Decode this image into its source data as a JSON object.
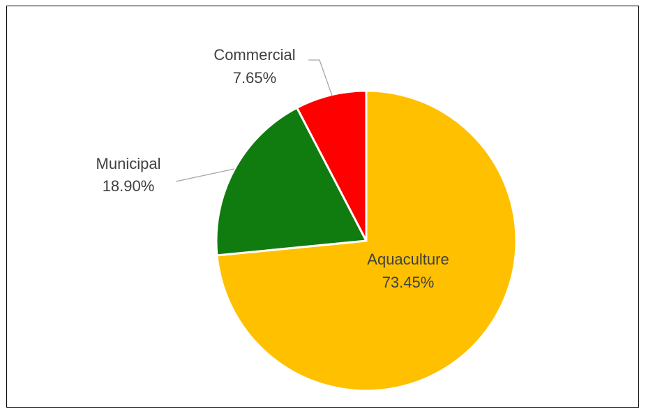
{
  "chart_data": {
    "type": "pie",
    "title": "",
    "slices": [
      {
        "label": "Aquaculture",
        "value": 73.45,
        "display": "73.45%",
        "color": "#FFC000"
      },
      {
        "label": "Municipal",
        "value": 18.9,
        "display": "18.90%",
        "color": "#107C10"
      },
      {
        "label": "Commercial",
        "value": 7.65,
        "display": "7.65%",
        "color": "#FF0000"
      }
    ],
    "start_angle_deg": 0,
    "direction": "clockwise",
    "slice_border_color": "#FFFFFF",
    "label_color": "#404040",
    "leader_line_color": "#A6A6A6"
  }
}
